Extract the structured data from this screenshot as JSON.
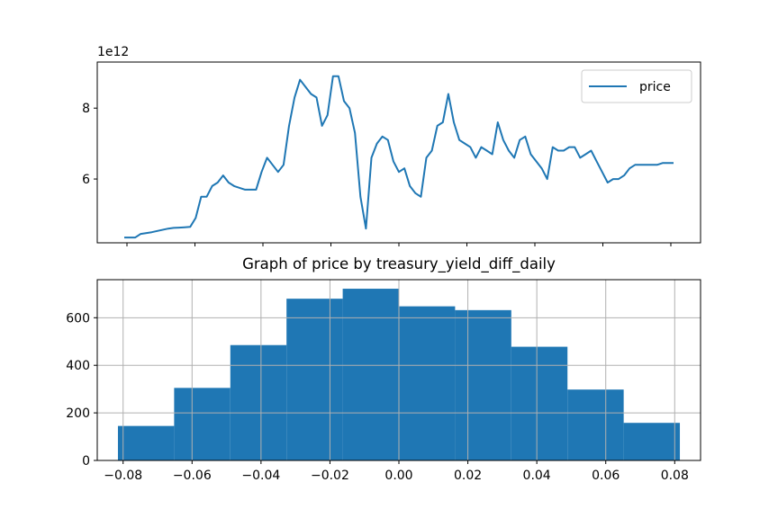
{
  "chart_data": [
    {
      "type": "line",
      "title": "",
      "xlabel": "",
      "ylabel": "",
      "y_offset_label": "1e12",
      "y_scale_exponent": 12,
      "ylim": [
        4.2,
        9.3
      ],
      "y_ticks": [
        6,
        8
      ],
      "x_tick_count": 9,
      "x_tick_labels_visible": false,
      "legend_position": "upper right",
      "grid": false,
      "series": [
        {
          "name": "price",
          "color": "#1f77b4",
          "x": [
            0,
            0.02,
            0.03,
            0.05,
            0.08,
            0.09,
            0.1,
            0.11,
            0.12,
            0.13,
            0.14,
            0.15,
            0.16,
            0.17,
            0.18,
            0.19,
            0.2,
            0.21,
            0.22,
            0.23,
            0.24,
            0.25,
            0.26,
            0.27,
            0.28,
            0.29,
            0.3,
            0.31,
            0.32,
            0.33,
            0.34,
            0.35,
            0.36,
            0.37,
            0.38,
            0.39,
            0.4,
            0.41,
            0.42,
            0.43,
            0.44,
            0.45,
            0.46,
            0.47,
            0.48,
            0.49,
            0.5,
            0.51,
            0.52,
            0.53,
            0.54,
            0.55,
            0.56,
            0.57,
            0.58,
            0.59,
            0.6,
            0.61,
            0.62,
            0.63,
            0.64,
            0.65,
            0.66,
            0.67,
            0.68,
            0.69,
            0.7,
            0.71,
            0.72,
            0.73,
            0.74,
            0.75,
            0.76,
            0.77,
            0.78,
            0.79,
            0.8,
            0.81,
            0.82,
            0.83,
            0.84,
            0.85,
            0.86,
            0.87,
            0.88,
            0.89,
            0.9,
            0.91,
            0.92,
            0.93,
            0.94,
            0.95,
            0.96,
            0.97,
            0.98,
            0.99,
            1
          ],
          "y": [
            4.35,
            4.35,
            4.45,
            4.5,
            4.6,
            4.62,
            4.63,
            4.64,
            4.65,
            4.9,
            5.5,
            5.5,
            5.8,
            5.9,
            6.1,
            5.9,
            5.8,
            5.75,
            5.7,
            5.7,
            5.7,
            6.2,
            6.6,
            6.4,
            6.2,
            6.4,
            7.5,
            8.3,
            8.8,
            8.6,
            8.4,
            8.3,
            7.5,
            7.8,
            8.9,
            8.9,
            8.2,
            8.0,
            7.3,
            5.5,
            4.6,
            6.6,
            7.0,
            7.2,
            7.1,
            6.5,
            6.2,
            6.3,
            5.8,
            5.6,
            5.5,
            6.6,
            6.8,
            7.5,
            7.6,
            8.4,
            7.6,
            7.1,
            7.0,
            6.9,
            6.6,
            6.9,
            6.8,
            6.7,
            7.6,
            7.1,
            6.8,
            6.6,
            7.1,
            7.2,
            6.7,
            6.5,
            6.3,
            6.0,
            6.9,
            6.8,
            6.8,
            6.9,
            6.9,
            6.6,
            6.7,
            6.8,
            6.5,
            6.2,
            5.9,
            6.0,
            6.0,
            6.1,
            6.3,
            6.4,
            6.4,
            6.4,
            6.4,
            6.4,
            6.45,
            6.45,
            6.45
          ]
        }
      ]
    },
    {
      "type": "bar",
      "title": "Graph of price by treasury_yield_diff_daily",
      "xlabel": "",
      "ylabel": "",
      "grid": true,
      "xlim": [
        -0.0875,
        0.0875
      ],
      "ylim": [
        0,
        760
      ],
      "x_ticks": [
        -0.08,
        -0.06,
        -0.04,
        -0.02,
        0.0,
        0.02,
        0.04,
        0.06,
        0.08
      ],
      "x_tick_labels": [
        "−0.08",
        "−0.06",
        "−0.04",
        "−0.02",
        "0.00",
        "0.02",
        "0.04",
        "0.06",
        "0.08"
      ],
      "y_ticks": [
        0,
        200,
        400,
        600
      ],
      "y_tick_labels": [
        "0",
        "200",
        "400",
        "600"
      ],
      "bin_edges": [
        -0.0815,
        -0.0652,
        -0.0489,
        -0.0326,
        -0.0163,
        0.0,
        0.0163,
        0.0326,
        0.0489,
        0.0652,
        0.0815
      ],
      "values": [
        145,
        305,
        485,
        680,
        722,
        648,
        632,
        478,
        298,
        158
      ],
      "color": "#1f77b4"
    }
  ]
}
